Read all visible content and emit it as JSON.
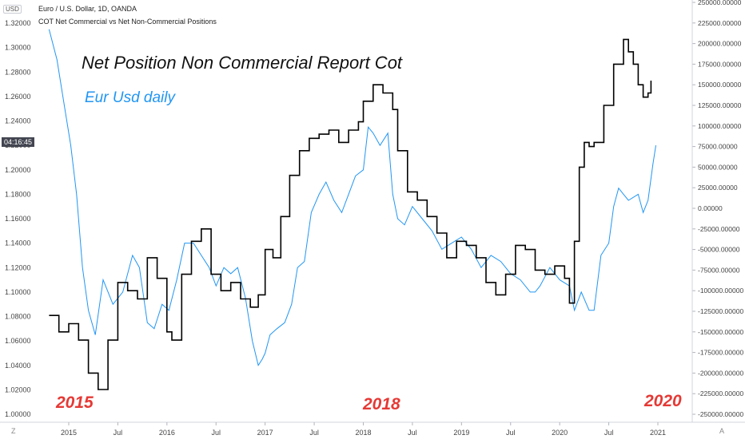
{
  "header": {
    "symbol_line": "Euro / U.S. Dollar, 1D, OANDA",
    "indicator_line": "COT Net Commercial vs Net Non-Commercial Positions",
    "left_axis_badge": "USD",
    "price_tag": "04:16:45",
    "bottom_left_btn": "Z",
    "bottom_right_btn": "A"
  },
  "annotations": {
    "title": "Net Position Non Commercial Report Cot",
    "subtitle": "Eur Usd daily",
    "year_2015": "2015",
    "year_2018": "2018",
    "year_2020": "2020"
  },
  "colors": {
    "eurusd": "#2196f3",
    "cot": "#000000",
    "subtitle": "#2196f3",
    "year_labels": "#e53935",
    "price_tag_bg": "#434651",
    "axis_line": "#d1d4dc"
  },
  "chart_data": {
    "type": "line",
    "x_ticks": [
      "2015",
      "Jul",
      "2016",
      "Jul",
      "2017",
      "Jul",
      "2018",
      "Jul",
      "2019",
      "Jul",
      "2020",
      "Jul",
      "2021"
    ],
    "left_axis": {
      "ticks": [
        "1.32000",
        "1.30000",
        "1.28000",
        "1.26000",
        "1.24000",
        "1.22000",
        "1.20000",
        "1.18000",
        "1.16000",
        "1.14000",
        "1.12000",
        "1.10000",
        "1.08000",
        "1.06000",
        "1.04000",
        "1.02000",
        "1.00000"
      ],
      "range": [
        1.0,
        1.32
      ]
    },
    "right_axis": {
      "ticks": [
        "250000.00000",
        "225000.00000",
        "200000.00000",
        "175000.00000",
        "150000.00000",
        "125000.00000",
        "100000.00000",
        "75000.00000",
        "50000.00000",
        "25000.00000",
        "0.00000",
        "-25000.00000",
        "-50000.00000",
        "-75000.00000",
        "-100000.00000",
        "-125000.00000",
        "-150000.00000",
        "-175000.00000",
        "-200000.00000",
        "-225000.00000",
        "-250000.00000"
      ],
      "range": [
        -250000,
        250000
      ]
    },
    "series": [
      {
        "key": "eurusd",
        "axis": "left",
        "x": [
          2014.8,
          2014.88,
          2014.96,
          2015.02,
          2015.08,
          2015.14,
          2015.2,
          2015.27,
          2015.35,
          2015.45,
          2015.55,
          2015.65,
          2015.72,
          2015.8,
          2015.87,
          2015.95,
          2016.02,
          2016.1,
          2016.18,
          2016.27,
          2016.35,
          2016.43,
          2016.5,
          2016.58,
          2016.65,
          2016.72,
          2016.8,
          2016.87,
          2016.93,
          2016.97,
          2017.0,
          2017.05,
          2017.12,
          2017.2,
          2017.27,
          2017.33,
          2017.4,
          2017.47,
          2017.55,
          2017.62,
          2017.7,
          2017.78,
          2017.85,
          2017.92,
          2018.0,
          2018.05,
          2018.1,
          2018.17,
          2018.25,
          2018.3,
          2018.35,
          2018.42,
          2018.5,
          2018.6,
          2018.7,
          2018.8,
          2018.9,
          2019.0,
          2019.1,
          2019.2,
          2019.3,
          2019.4,
          2019.5,
          2019.6,
          2019.7,
          2019.75,
          2019.8,
          2019.9,
          2020.0,
          2020.1,
          2020.15,
          2020.22,
          2020.3,
          2020.35,
          2020.42,
          2020.5,
          2020.55,
          2020.6,
          2020.65,
          2020.7,
          2020.8,
          2020.85,
          2020.9,
          2020.95,
          2020.98
        ],
        "y": [
          1.315,
          1.29,
          1.25,
          1.22,
          1.18,
          1.12,
          1.085,
          1.065,
          1.11,
          1.09,
          1.1,
          1.13,
          1.12,
          1.075,
          1.07,
          1.09,
          1.085,
          1.11,
          1.14,
          1.14,
          1.13,
          1.12,
          1.105,
          1.12,
          1.115,
          1.12,
          1.095,
          1.06,
          1.04,
          1.045,
          1.05,
          1.065,
          1.07,
          1.075,
          1.09,
          1.12,
          1.125,
          1.165,
          1.18,
          1.19,
          1.175,
          1.165,
          1.18,
          1.195,
          1.2,
          1.235,
          1.23,
          1.22,
          1.23,
          1.18,
          1.16,
          1.155,
          1.17,
          1.16,
          1.15,
          1.135,
          1.14,
          1.145,
          1.135,
          1.12,
          1.13,
          1.125,
          1.115,
          1.11,
          1.1,
          1.1,
          1.105,
          1.12,
          1.11,
          1.105,
          1.085,
          1.1,
          1.085,
          1.085,
          1.13,
          1.14,
          1.17,
          1.185,
          1.18,
          1.175,
          1.18,
          1.165,
          1.175,
          1.205,
          1.22
        ]
      },
      {
        "key": "cot",
        "axis": "right",
        "x": [
          2014.8,
          2014.9,
          2015.0,
          2015.1,
          2015.2,
          2015.3,
          2015.4,
          2015.5,
          2015.6,
          2015.7,
          2015.8,
          2015.9,
          2016.0,
          2016.05,
          2016.15,
          2016.25,
          2016.35,
          2016.45,
          2016.55,
          2016.65,
          2016.75,
          2016.85,
          2016.93,
          2017.0,
          2017.08,
          2017.16,
          2017.25,
          2017.35,
          2017.45,
          2017.55,
          2017.65,
          2017.75,
          2017.85,
          2017.95,
          2018.0,
          2018.1,
          2018.2,
          2018.3,
          2018.35,
          2018.45,
          2018.55,
          2018.65,
          2018.75,
          2018.85,
          2018.95,
          2019.05,
          2019.15,
          2019.25,
          2019.35,
          2019.45,
          2019.55,
          2019.65,
          2019.75,
          2019.85,
          2019.95,
          2020.05,
          2020.1,
          2020.15,
          2020.2,
          2020.25,
          2020.3,
          2020.35,
          2020.45,
          2020.55,
          2020.65,
          2020.7,
          2020.75,
          2020.8,
          2020.85,
          2020.9,
          2020.93
        ],
        "y": [
          -130000,
          -150000,
          -140000,
          -160000,
          -200000,
          -220000,
          -160000,
          -90000,
          -100000,
          -110000,
          -60000,
          -85000,
          -150000,
          -160000,
          -80000,
          -40000,
          -25000,
          -80000,
          -100000,
          -90000,
          -110000,
          -120000,
          -105000,
          -50000,
          -60000,
          -10000,
          40000,
          70000,
          85000,
          90000,
          95000,
          80000,
          95000,
          105000,
          130000,
          150000,
          140000,
          120000,
          70000,
          20000,
          10000,
          -10000,
          -30000,
          -60000,
          -40000,
          -45000,
          -60000,
          -90000,
          -105000,
          -80000,
          -45000,
          -50000,
          -75000,
          -80000,
          -70000,
          -85000,
          -115000,
          -40000,
          50000,
          80000,
          75000,
          80000,
          125000,
          175000,
          205000,
          190000,
          175000,
          150000,
          135000,
          140000,
          155000
        ]
      }
    ]
  }
}
